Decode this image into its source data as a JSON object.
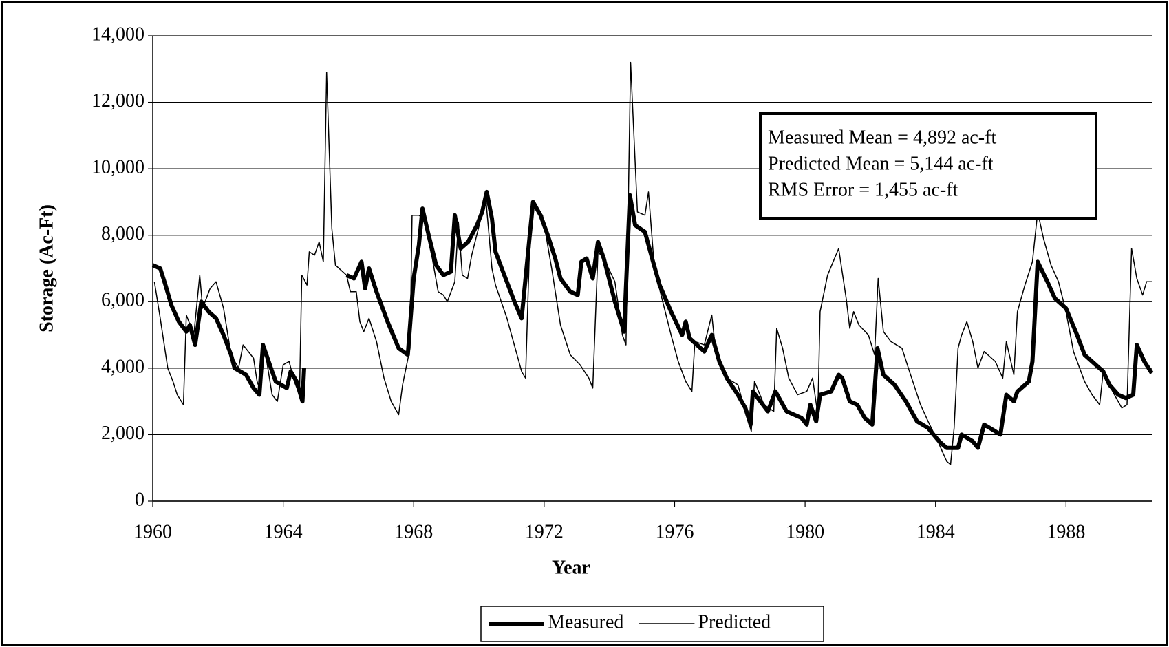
{
  "chart_data": {
    "type": "line",
    "x_label": "Year",
    "y_label": "Storage (Ac-Ft)",
    "xlim": [
      1960,
      1990.63
    ],
    "xticks": [
      1960,
      1964,
      1968,
      1972,
      1976,
      1980,
      1984,
      1988
    ],
    "ylim": [
      0,
      14000
    ],
    "yticks": [
      0,
      {
        "value": 2000,
        "label": "2,000"
      },
      {
        "value": 4000,
        "label": "4,000"
      },
      {
        "value": 6000,
        "label": "6,000"
      },
      {
        "value": 8000,
        "label": "8,000"
      },
      {
        "value": 10000,
        "label": "10,000"
      },
      {
        "value": 12000,
        "label": "12,000"
      },
      {
        "value": 14000,
        "label": "14,000"
      }
    ],
    "grid": true,
    "legend": "bottom",
    "annotations": [
      "Measured Mean = 4,892 ac-ft",
      "Predicted Mean  = 5,144 ac-ft",
      "RMS Error = 1,455 ac-ft"
    ],
    "series": [
      {
        "name": "Measured",
        "color": "#000000",
        "line_width": 6,
        "x": [
          1960.0,
          1960.23,
          1960.39,
          1960.57,
          1960.8,
          1961.03,
          1961.14,
          1961.3,
          1961.49,
          1961.71,
          1961.94,
          1962.17,
          1962.4,
          1962.51,
          1962.86,
          1963.09,
          1963.27,
          1963.38,
          1963.66,
          1963.77,
          1964.11,
          1964.23,
          1964.41,
          1964.59,
          1964.64,
          1965.3,
          1965.94,
          1966.17,
          1966.4,
          1966.51,
          1966.63,
          1966.86,
          1967.2,
          1967.54,
          1967.82,
          1968.0,
          1968.16,
          1968.27,
          1968.46,
          1968.69,
          1968.91,
          1969.14,
          1969.26,
          1969.44,
          1969.67,
          1969.94,
          1970.1,
          1970.24,
          1970.4,
          1970.51,
          1970.74,
          1971.09,
          1971.31,
          1971.66,
          1971.89,
          1972.11,
          1972.34,
          1972.5,
          1972.8,
          1973.03,
          1973.14,
          1973.3,
          1973.49,
          1973.65,
          1973.83,
          1974.17,
          1974.45,
          1974.63,
          1974.79,
          1975.09,
          1975.31,
          1975.54,
          1975.89,
          1976.23,
          1976.34,
          1976.46,
          1976.91,
          1977.14,
          1977.37,
          1977.6,
          1977.94,
          1978.17,
          1978.33,
          1978.4,
          1978.86,
          1979.09,
          1979.43,
          1979.89,
          1980.05,
          1980.16,
          1980.34,
          1980.46,
          1980.8,
          1981.03,
          1981.14,
          1981.37,
          1981.6,
          1981.83,
          1982.06,
          1982.22,
          1982.4,
          1982.74,
          1983.09,
          1983.43,
          1983.77,
          1984.11,
          1984.34,
          1984.69,
          1984.8,
          1985.14,
          1985.3,
          1985.49,
          1985.83,
          1985.99,
          1986.17,
          1986.4,
          1986.51,
          1986.86,
          1986.97,
          1987.13,
          1987.43,
          1987.66,
          1988.0,
          1988.34,
          1988.57,
          1988.91,
          1989.14,
          1989.33,
          1989.6,
          1989.83,
          1990.06,
          1990.17,
          1990.4,
          1990.63
        ],
        "values": [
          7100,
          7000,
          6500,
          5900,
          5400,
          5100,
          5300,
          4700,
          6000,
          5700,
          5500,
          5000,
          4400,
          4000,
          3800,
          3400,
          3200,
          4700,
          3900,
          3600,
          3400,
          3900,
          3600,
          3000,
          4000,
          null,
          6800,
          6700,
          7200,
          6400,
          7000,
          6300,
          5400,
          4600,
          4400,
          6700,
          7700,
          8800,
          8000,
          7100,
          6800,
          6900,
          8600,
          7600,
          7800,
          8300,
          8700,
          9300,
          8500,
          7500,
          6900,
          6000,
          5500,
          9000,
          8600,
          8000,
          7300,
          6700,
          6300,
          6200,
          7200,
          7300,
          6700,
          7800,
          7300,
          6000,
          5100,
          9200,
          8300,
          8100,
          7300,
          6500,
          5700,
          5000,
          5400,
          4900,
          4500,
          5000,
          4200,
          3700,
          3200,
          2800,
          2300,
          3300,
          2700,
          3300,
          2700,
          2500,
          2300,
          2900,
          2400,
          3200,
          3300,
          3800,
          3700,
          3000,
          2900,
          2500,
          2300,
          4600,
          3800,
          3500,
          3000,
          2400,
          2200,
          1800,
          1600,
          1600,
          2000,
          1800,
          1600,
          2300,
          2100,
          2000,
          3200,
          3000,
          3300,
          3600,
          4200,
          7200,
          6600,
          6100,
          5800,
          5000,
          4400,
          4100,
          3900,
          3500,
          3200,
          3100,
          3200,
          4700,
          4200,
          3850
        ]
      },
      {
        "name": "Predicted",
        "color": "#000000",
        "line_width": 1.5,
        "x": [
          1960.05,
          1960.23,
          1960.46,
          1960.62,
          1960.75,
          1960.94,
          1961.03,
          1961.26,
          1961.44,
          1961.53,
          1961.76,
          1961.94,
          1962.17,
          1962.4,
          1962.63,
          1962.77,
          1963.09,
          1963.2,
          1963.31,
          1963.43,
          1963.66,
          1963.82,
          1964.0,
          1964.18,
          1964.34,
          1964.5,
          1964.57,
          1964.73,
          1964.8,
          1964.96,
          1965.1,
          1965.23,
          1965.33,
          1965.49,
          1965.6,
          1965.94,
          1966.06,
          1966.24,
          1966.35,
          1966.47,
          1966.63,
          1966.86,
          1967.09,
          1967.31,
          1967.54,
          1967.66,
          1967.89,
          1967.95,
          1968.16,
          1968.3,
          1968.57,
          1968.75,
          1968.91,
          1969.03,
          1969.26,
          1969.37,
          1969.49,
          1969.65,
          1969.78,
          1970.06,
          1970.22,
          1970.4,
          1970.51,
          1970.86,
          1971.31,
          1971.43,
          1971.54,
          1971.66,
          1971.95,
          1972.23,
          1972.5,
          1972.8,
          1973.1,
          1973.37,
          1973.49,
          1973.65,
          1973.83,
          1974.17,
          1974.4,
          1974.51,
          1974.65,
          1974.86,
          1975.09,
          1975.2,
          1975.38,
          1975.66,
          1975.89,
          1976.11,
          1976.34,
          1976.53,
          1976.62,
          1976.91,
          1977.14,
          1977.26,
          1977.6,
          1977.94,
          1978.17,
          1978.35,
          1978.45,
          1978.74,
          1979.04,
          1979.13,
          1979.31,
          1979.5,
          1979.77,
          1980.05,
          1980.23,
          1980.39,
          1980.46,
          1980.69,
          1981.03,
          1981.26,
          1981.37,
          1981.49,
          1981.65,
          1981.94,
          1982.13,
          1982.24,
          1982.4,
          1982.63,
          1982.97,
          1983.2,
          1983.54,
          1983.77,
          1984.07,
          1984.34,
          1984.46,
          1984.57,
          1984.69,
          1984.8,
          1984.96,
          1985.14,
          1985.3,
          1985.49,
          1985.83,
          1986.06,
          1986.17,
          1986.4,
          1986.51,
          1986.74,
          1986.97,
          1987.13,
          1987.31,
          1987.54,
          1987.77,
          1988.0,
          1988.23,
          1988.57,
          1988.8,
          1989.03,
          1989.14,
          1989.37,
          1989.71,
          1989.87,
          1990.01,
          1990.17,
          1990.35,
          1990.47,
          1990.63
        ],
        "values": [
          6600,
          5500,
          4000,
          3600,
          3200,
          2900,
          5600,
          5000,
          6800,
          5800,
          6400,
          6600,
          5800,
          4400,
          4000,
          4700,
          4300,
          3600,
          3300,
          4600,
          3200,
          3000,
          4100,
          4200,
          3600,
          3200,
          6800,
          6500,
          7500,
          7400,
          7800,
          7200,
          12900,
          8200,
          7100,
          6800,
          6300,
          6300,
          5400,
          5100,
          5500,
          4800,
          3700,
          3000,
          2600,
          3500,
          4600,
          8600,
          8600,
          8500,
          7300,
          6300,
          6200,
          6000,
          6600,
          8400,
          6800,
          6700,
          7400,
          8500,
          9000,
          7000,
          6500,
          5500,
          3900,
          3700,
          7200,
          8900,
          8600,
          7000,
          5300,
          4400,
          4100,
          3700,
          3400,
          7500,
          7300,
          6600,
          5000,
          4700,
          13200,
          8700,
          8600,
          9300,
          7000,
          5900,
          5000,
          4200,
          3600,
          3300,
          4800,
          4700,
          5600,
          4500,
          3700,
          3500,
          2700,
          2100,
          3600,
          2900,
          2700,
          5200,
          4600,
          3700,
          3200,
          3300,
          3700,
          2600,
          5700,
          6800,
          7600,
          6100,
          5200,
          5700,
          5300,
          5000,
          4400,
          6700,
          5100,
          4800,
          4600,
          3900,
          2900,
          2400,
          1800,
          1200,
          1100,
          2200,
          4600,
          5000,
          5400,
          4800,
          4000,
          4500,
          4200,
          3700,
          4800,
          3800,
          5700,
          6500,
          7200,
          8700,
          7900,
          7100,
          6600,
          5700,
          4500,
          3600,
          3200,
          2900,
          3900,
          3400,
          2800,
          2900,
          7600,
          6700,
          6200,
          6600,
          6600
        ]
      }
    ]
  }
}
